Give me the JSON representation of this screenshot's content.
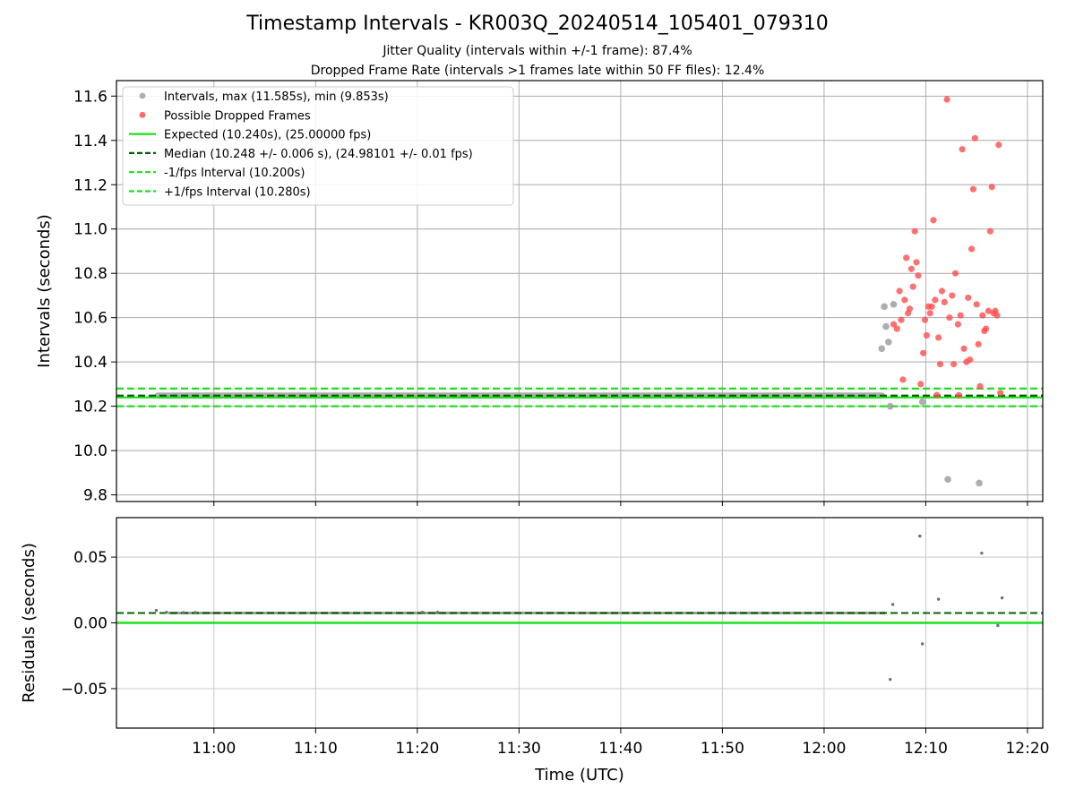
{
  "header": {
    "title": "Timestamp Intervals - KR003Q_20240514_105401_079310",
    "subtitle_1": "Jitter Quality (intervals within +/-1 frame): 87.4%",
    "subtitle_2": "Dropped Frame Rate (intervals >1 frames late within 50 FF files): 12.4%"
  },
  "chart_data": [
    {
      "type": "scatter",
      "xlabel": "",
      "ylabel": "Intervals (seconds)",
      "ylim": [
        9.77,
        11.67
      ],
      "yticks": [
        9.8,
        10.0,
        10.2,
        10.4,
        10.6,
        10.8,
        11.0,
        11.2,
        11.4,
        11.6
      ],
      "ytick_labels": [
        "9.8",
        "10.0",
        "10.2",
        "10.4",
        "10.6",
        "10.8",
        "11.0",
        "11.2",
        "11.4",
        "11.6"
      ],
      "grid": true,
      "legend_position": "top-left",
      "legend": [
        {
          "label": "Intervals, max (11.585s), min (9.853s)",
          "kind": "marker",
          "color": "#a0a0a0"
        },
        {
          "label": "Possible Dropped Frames",
          "kind": "marker",
          "color": "#ff4d4d"
        },
        {
          "label": "Expected (10.240s), (25.00000 fps)",
          "kind": "solid",
          "color": "#1de01d"
        },
        {
          "label": "Median (10.248 +/- 0.006 s), (24.98101 +/- 0.01 fps)",
          "kind": "dashed",
          "color": "#006400"
        },
        {
          "label": "-1/fps Interval (10.200s)",
          "kind": "dashed",
          "color": "#1de01d"
        },
        {
          "label": "+1/fps Interval (10.280s)",
          "kind": "dashed",
          "color": "#1de01d"
        }
      ],
      "reference_lines": {
        "expected": 10.24,
        "median": 10.248,
        "minus_one_frame": 10.2,
        "plus_one_frame": 10.28
      },
      "series": [
        {
          "name": "Intervals, max (11.585s), min (9.853s)",
          "color": "#a0a0a0",
          "dense_band": {
            "x_start": "10:54:10",
            "x_end": "12:06:00",
            "y": 10.248
          },
          "points": [
            {
              "x": "12:05:40",
              "y": 10.46
            },
            {
              "x": "12:05:55",
              "y": 10.65
            },
            {
              "x": "12:06:05",
              "y": 10.56
            },
            {
              "x": "12:06:20",
              "y": 10.49
            },
            {
              "x": "12:06:30",
              "y": 10.2
            },
            {
              "x": "12:06:50",
              "y": 10.66
            },
            {
              "x": "12:09:40",
              "y": 10.22
            },
            {
              "x": "12:12:10",
              "y": 9.87
            },
            {
              "x": "12:15:15",
              "y": 9.853
            }
          ]
        },
        {
          "name": "Possible Dropped Frames",
          "color": "#ff4d4d",
          "points": [
            {
              "x": "12:06:50",
              "y": 10.57
            },
            {
              "x": "12:07:10",
              "y": 10.55
            },
            {
              "x": "12:07:25",
              "y": 10.72
            },
            {
              "x": "12:07:35",
              "y": 10.59
            },
            {
              "x": "12:07:45",
              "y": 10.32
            },
            {
              "x": "12:07:55",
              "y": 10.68
            },
            {
              "x": "12:08:05",
              "y": 10.87
            },
            {
              "x": "12:08:15",
              "y": 10.62
            },
            {
              "x": "12:08:25",
              "y": 10.64
            },
            {
              "x": "12:08:35",
              "y": 10.82
            },
            {
              "x": "12:08:45",
              "y": 10.74
            },
            {
              "x": "12:08:55",
              "y": 10.99
            },
            {
              "x": "12:09:05",
              "y": 10.85
            },
            {
              "x": "12:09:15",
              "y": 10.79
            },
            {
              "x": "12:09:30",
              "y": 10.3
            },
            {
              "x": "12:09:45",
              "y": 10.44
            },
            {
              "x": "12:09:55",
              "y": 10.59
            },
            {
              "x": "12:10:05",
              "y": 10.52
            },
            {
              "x": "12:10:15",
              "y": 10.65
            },
            {
              "x": "12:10:25",
              "y": 10.62
            },
            {
              "x": "12:10:35",
              "y": 10.65
            },
            {
              "x": "12:10:45",
              "y": 11.04
            },
            {
              "x": "12:10:55",
              "y": 10.68
            },
            {
              "x": "12:11:05",
              "y": 10.25
            },
            {
              "x": "12:11:15",
              "y": 10.51
            },
            {
              "x": "12:11:25",
              "y": 10.39
            },
            {
              "x": "12:11:35",
              "y": 10.72
            },
            {
              "x": "12:11:50",
              "y": 10.67
            },
            {
              "x": "12:12:05",
              "y": 11.585
            },
            {
              "x": "12:12:20",
              "y": 10.6
            },
            {
              "x": "12:12:35",
              "y": 10.7
            },
            {
              "x": "12:12:45",
              "y": 10.39
            },
            {
              "x": "12:12:55",
              "y": 10.8
            },
            {
              "x": "12:13:10",
              "y": 10.57
            },
            {
              "x": "12:13:15",
              "y": 10.25
            },
            {
              "x": "12:13:25",
              "y": 10.61
            },
            {
              "x": "12:13:35",
              "y": 11.36
            },
            {
              "x": "12:13:45",
              "y": 10.46
            },
            {
              "x": "12:14:00",
              "y": 10.4
            },
            {
              "x": "12:14:10",
              "y": 10.69
            },
            {
              "x": "12:14:20",
              "y": 10.41
            },
            {
              "x": "12:14:30",
              "y": 10.91
            },
            {
              "x": "12:14:40",
              "y": 11.18
            },
            {
              "x": "12:14:50",
              "y": 11.41
            },
            {
              "x": "12:15:00",
              "y": 10.66
            },
            {
              "x": "12:15:10",
              "y": 10.48
            },
            {
              "x": "12:15:20",
              "y": 10.29
            },
            {
              "x": "12:15:35",
              "y": 10.61
            },
            {
              "x": "12:15:45",
              "y": 10.54
            },
            {
              "x": "12:15:55",
              "y": 10.55
            },
            {
              "x": "12:16:10",
              "y": 10.63
            },
            {
              "x": "12:16:20",
              "y": 10.99
            },
            {
              "x": "12:16:30",
              "y": 11.19
            },
            {
              "x": "12:16:40",
              "y": 10.62
            },
            {
              "x": "12:16:50",
              "y": 10.63
            },
            {
              "x": "12:17:00",
              "y": 10.61
            },
            {
              "x": "12:17:10",
              "y": 11.38
            },
            {
              "x": "12:17:20",
              "y": 10.26
            }
          ]
        }
      ]
    },
    {
      "type": "scatter",
      "xlabel": "Time (UTC)",
      "ylabel": "Residuals (seconds)",
      "xlim": [
        "10:50:25",
        "12:21:30"
      ],
      "xticks": [
        "11:00",
        "11:10",
        "11:20",
        "11:30",
        "11:40",
        "11:50",
        "12:00",
        "12:10",
        "12:20"
      ],
      "ylim": [
        -0.08,
        0.08
      ],
      "yticks": [
        -0.05,
        0.0,
        0.05
      ],
      "ytick_labels": [
        "−0.05",
        "0.00",
        "0.05"
      ],
      "grid": true,
      "reference_lines": {
        "zero": 0.0,
        "median_residual": 0.0075
      },
      "series": [
        {
          "name": "",
          "color": "#707070",
          "dense_band": {
            "x_start": "10:55:30",
            "x_end": "12:06:00",
            "y": 0.0075
          },
          "points": [
            {
              "x": "10:54:20",
              "y": 0.0095
            },
            {
              "x": "10:55:20",
              "y": 0.008
            },
            {
              "x": "10:57:00",
              "y": 0.0078
            },
            {
              "x": "10:58:10",
              "y": 0.0079
            },
            {
              "x": "11:20:30",
              "y": 0.008
            },
            {
              "x": "11:22:00",
              "y": 0.008
            },
            {
              "x": "12:06:30",
              "y": -0.043
            },
            {
              "x": "12:06:45",
              "y": 0.014
            },
            {
              "x": "12:09:25",
              "y": 0.066
            },
            {
              "x": "12:09:40",
              "y": -0.016
            },
            {
              "x": "12:11:15",
              "y": 0.018
            },
            {
              "x": "12:15:30",
              "y": 0.053
            },
            {
              "x": "12:17:05",
              "y": -0.002
            },
            {
              "x": "12:17:30",
              "y": 0.019
            }
          ]
        }
      ]
    }
  ]
}
